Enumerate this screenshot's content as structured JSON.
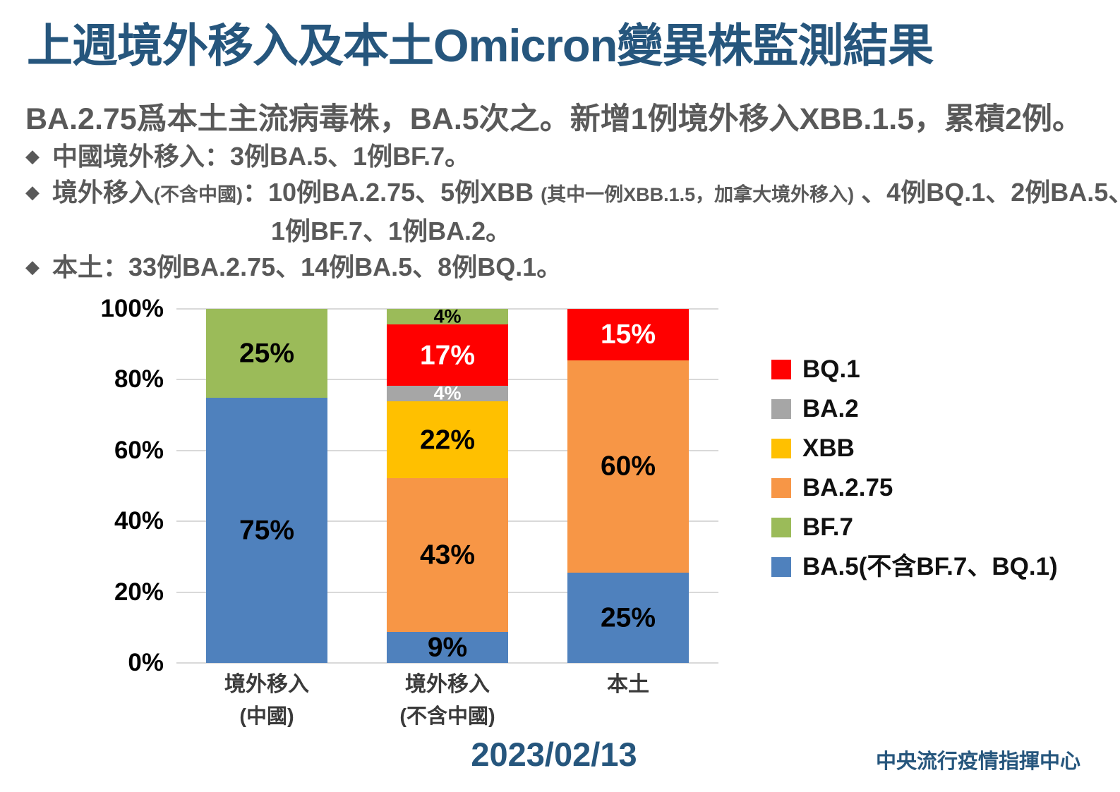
{
  "title": "上週境外移入及本土Omicron變異株監測結果",
  "subtitle": "BA.2.75爲本土主流病毒株，BA.5次之。新增1例境外移入XBB.1.5，累積2例。",
  "bullet_marker": "◆",
  "bullets": [
    {
      "lines": [
        {
          "indent": 0,
          "segments": [
            {
              "text": "中國境外移入：3例BA.5、1例BF.7。",
              "small": false
            }
          ]
        }
      ]
    },
    {
      "lines": [
        {
          "indent": 0,
          "segments": [
            {
              "text": "境外移入",
              "small": false
            },
            {
              "text": "(不含中國)",
              "small": true
            },
            {
              "text": "：10例BA.2.75、5例XBB ",
              "small": false
            },
            {
              "text": "(其中一例XBB.1.5，加拿大境外移入)",
              "small": true
            },
            {
              "text": " 、4例BQ.1、2例BA.5、",
              "small": false
            }
          ]
        },
        {
          "indent": 310,
          "segments": [
            {
              "text": "1例BF.7、1例BA.2。",
              "small": false
            }
          ]
        }
      ]
    },
    {
      "lines": [
        {
          "indent": 0,
          "segments": [
            {
              "text": "本土：33例BA.2.75、14例BA.5、8例BQ.1。",
              "small": false
            }
          ]
        }
      ]
    }
  ],
  "chart_data": {
    "type": "bar",
    "stacked": true,
    "unit": "percent",
    "ylim": [
      0,
      100
    ],
    "yticks": [
      "0%",
      "20%",
      "40%",
      "60%",
      "80%",
      "100%"
    ],
    "grid": true,
    "legend_position": "right",
    "categories": [
      {
        "line1": "境外移入",
        "line2": "(中國)"
      },
      {
        "line1": "境外移入",
        "line2": "(不含中國)"
      },
      {
        "line1": "本土",
        "line2": ""
      }
    ],
    "series": [
      {
        "name": "BA.5(不含BF.7、BQ.1)",
        "color": "#4F81BD",
        "label_color": "#000000",
        "values": [
          75,
          8.7,
          25.5
        ],
        "data_labels": [
          "75%",
          "9%",
          "25%"
        ]
      },
      {
        "name": "BA.2.75",
        "color": "#F79646",
        "label_color": "#000000",
        "values": [
          0,
          43.5,
          60
        ],
        "data_labels": [
          "",
          "43%",
          "60%"
        ]
      },
      {
        "name": "XBB",
        "color": "#FFC000",
        "label_color": "#000000",
        "values": [
          0,
          21.7,
          0
        ],
        "data_labels": [
          "",
          "22%",
          ""
        ]
      },
      {
        "name": "BA.2",
        "color": "#A6A6A6",
        "label_color": "#FFFFFF",
        "values": [
          0,
          4.3,
          0
        ],
        "data_labels": [
          "",
          "4%",
          ""
        ]
      },
      {
        "name": "BQ.1",
        "color": "#FF0000",
        "label_color": "#FFFFFF",
        "values": [
          0,
          17.4,
          14.5
        ],
        "data_labels": [
          "",
          "17%",
          "15%"
        ]
      },
      {
        "name": "BF.7",
        "color": "#9BBB59",
        "label_color": "#000000",
        "values": [
          25,
          4.4,
          0
        ],
        "data_labels": [
          "25%",
          "4%",
          ""
        ]
      }
    ],
    "legend": [
      {
        "label": "BQ.1",
        "color": "#FF0000"
      },
      {
        "label": "BA.2",
        "color": "#A6A6A6"
      },
      {
        "label": "XBB",
        "color": "#FFC000"
      },
      {
        "label": "BA.2.75",
        "color": "#F79646"
      },
      {
        "label": "BF.7",
        "color": "#9BBB59"
      },
      {
        "label": "BA.5(不含BF.7、BQ.1)",
        "color": "#4F81BD"
      }
    ]
  },
  "date": "2023/02/13",
  "source": "中央流行疫情指揮中心",
  "colors": {
    "accent_navy": "#26567D",
    "text_gray": "#595959",
    "grid": "#D9D9D9"
  }
}
